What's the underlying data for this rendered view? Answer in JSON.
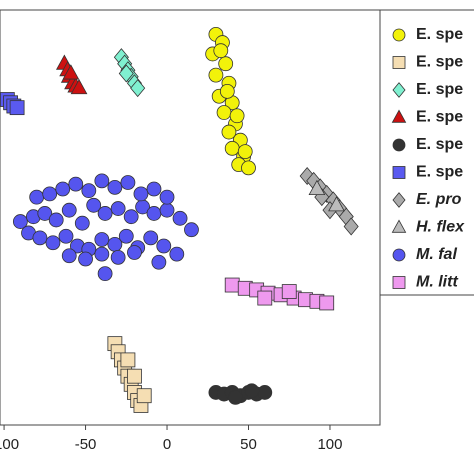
{
  "chart_data": {
    "type": "scatter",
    "xlim": [
      -102.5,
      130.7
    ],
    "xticks": [
      -100,
      -50,
      0,
      50,
      100
    ],
    "ylim": [
      -130,
      125
    ],
    "series": [
      {
        "name": "E. spe",
        "color": "#f2f20a",
        "marker": "circle",
        "x": [
          30,
          34,
          28,
          36,
          30,
          38,
          32,
          40,
          35,
          42,
          38,
          45,
          40,
          47,
          44,
          50,
          48,
          33,
          43,
          37
        ],
        "values": [
          110,
          105,
          98,
          92,
          85,
          80,
          72,
          68,
          62,
          55,
          50,
          45,
          40,
          35,
          30,
          28,
          38,
          100,
          60,
          75
        ]
      },
      {
        "name": "E. spe",
        "color": "#f5deb3",
        "marker": "square",
        "x": [
          -32,
          -30,
          -28,
          -26,
          -24,
          -22,
          -20,
          -18,
          -16,
          -14,
          -20,
          -24
        ],
        "values": [
          -80,
          -85,
          -90,
          -95,
          -100,
          -105,
          -110,
          -115,
          -118,
          -112,
          -100,
          -90
        ]
      },
      {
        "name": "E. spe",
        "color": "#80f0d0",
        "marker": "diamond",
        "x": [
          -28,
          -26,
          -24,
          -22,
          -20,
          -18,
          -25
        ],
        "values": [
          96,
          92,
          88,
          84,
          80,
          77,
          86
        ]
      },
      {
        "name": "E. spe",
        "color": "#cc1111",
        "marker": "triangle",
        "x": [
          -63,
          -61,
          -60,
          -58,
          -56,
          -54,
          -59
        ],
        "values": [
          92,
          88,
          84,
          80,
          78,
          77,
          86
        ]
      },
      {
        "name": "E. spe",
        "color": "#333333",
        "marker": "circle",
        "x": [
          30,
          35,
          40,
          45,
          50,
          55,
          60,
          42,
          52
        ],
        "values": [
          -110,
          -111,
          -110,
          -112,
          -110,
          -111,
          -110,
          -113,
          -109
        ]
      },
      {
        "name": "E. spe",
        "color": "#5a5af0",
        "marker": "square",
        "x": [
          -98,
          -96,
          -94,
          -92
        ],
        "values": [
          70,
          68,
          66,
          65
        ]
      },
      {
        "name": "E. pro",
        "color": "#aaaaaa",
        "marker": "diamond",
        "x": [
          86,
          90,
          94,
          98,
          102,
          106,
          110,
          113,
          100,
          95
        ],
        "values": [
          23,
          20,
          16,
          12,
          8,
          3,
          -2,
          -8,
          2,
          10
        ]
      },
      {
        "name": "H. flex",
        "color": "#bbbbbb",
        "marker": "triangle",
        "x": [
          92,
          104
        ],
        "values": [
          15,
          5
        ]
      },
      {
        "name": "M. fal",
        "color": "#5555ee",
        "marker": "circle",
        "x": [
          -90,
          -82,
          -75,
          -68,
          -60,
          -52,
          -45,
          -38,
          -30,
          -22,
          -15,
          -8,
          0,
          8,
          15,
          -85,
          -78,
          -70,
          -62,
          -55,
          -48,
          -40,
          -32,
          -25,
          -18,
          -10,
          -2,
          6,
          -80,
          -72,
          -64,
          -56,
          -48,
          -40,
          -32,
          -24,
          -16,
          -8,
          0,
          -60,
          -50,
          -40,
          -30,
          -20,
          -38,
          -5
        ],
        "values": [
          -5,
          -2,
          0,
          -4,
          2,
          -6,
          5,
          0,
          3,
          -2,
          4,
          0,
          2,
          -3,
          -10,
          -12,
          -15,
          -18,
          -14,
          -20,
          -22,
          -16,
          -19,
          -14,
          -21,
          -15,
          -20,
          -25,
          10,
          12,
          15,
          18,
          14,
          20,
          16,
          19,
          12,
          15,
          10,
          -26,
          -28,
          -25,
          -27,
          -24,
          -37,
          -30
        ]
      },
      {
        "name": "M. litt",
        "color": "#ee99ee",
        "marker": "square",
        "x": [
          40,
          48,
          55,
          62,
          70,
          78,
          85,
          92,
          98,
          60,
          75
        ],
        "values": [
          -44,
          -46,
          -47,
          -49,
          -50,
          -52,
          -53,
          -54,
          -55,
          -52,
          -48
        ]
      }
    ]
  }
}
